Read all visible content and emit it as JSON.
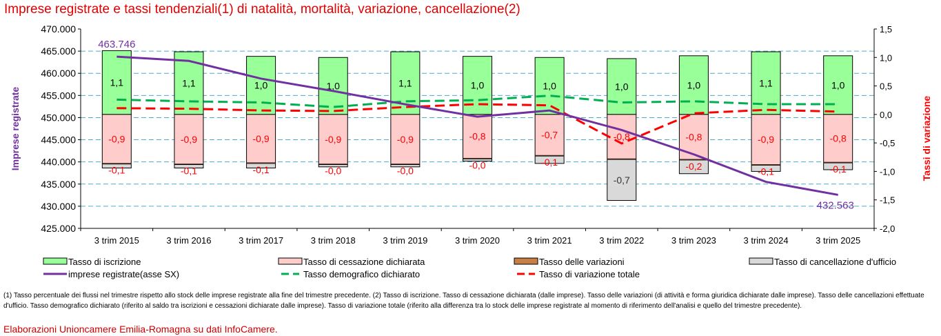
{
  "title": "Imprese registrate e tassi tendenziali(1) di natalità, mortalità, variazione, cancellazione(2)",
  "colors": {
    "iscrizione": "#99ff99",
    "cessazione": "#ffcccc",
    "variazioni": "#c87f46",
    "cancellazione": "#d9d9d9",
    "imprese": "#7030a0",
    "demografico": "#00b050",
    "variazione_totale": "#ff0000",
    "grid": "#4bacc6",
    "title": "#e00000"
  },
  "chart_data": {
    "type": "bar",
    "title": "Imprese registrate e tassi tendenziali(1) di natalità, mortalità, variazione, cancellazione(2)",
    "categories": [
      "3 trim 2015",
      "3 trim 2016",
      "3 trim 2017",
      "3 trim 2018",
      "3 trim 2019",
      "3 trim 2020",
      "3 trim 2021",
      "3 trim 2022",
      "3 trim 2023",
      "3 trim 2024",
      "3 trim 2025"
    ],
    "ylabel_left": "Imprese registrate",
    "ylabel_right": "Tassi di variazione",
    "ylim_left": [
      425000,
      470000
    ],
    "ylim_right": [
      -2.0,
      1.5
    ],
    "yticks_left": [
      "470.000",
      "465.000",
      "460.000",
      "455.000",
      "450.000",
      "445.000",
      "440.000",
      "435.000",
      "430.000",
      "425.000"
    ],
    "yticks_right": [
      "1,5",
      "1,0",
      "0,5",
      "0,0",
      "-0,5",
      "-1,0",
      "-1,5",
      "-2,0"
    ],
    "series": [
      {
        "name": "Tasso di iscrizione",
        "kind": "stacked-bar",
        "axis": "right",
        "values": [
          1.12,
          1.1,
          1.02,
          1.0,
          1.1,
          1.02,
          1.0,
          0.98,
          1.03,
          1.1,
          1.03
        ],
        "labels": [
          "1,1",
          "1,1",
          "1,0",
          "1,0",
          "1,1",
          "1,0",
          "1,0",
          "1,0",
          "1,0",
          "1,1",
          "1,0"
        ]
      },
      {
        "name": "Tasso di cessazione dichiarata",
        "kind": "stacked-bar",
        "axis": "right",
        "values": [
          -0.86,
          -0.87,
          -0.85,
          -0.87,
          -0.87,
          -0.77,
          -0.72,
          -0.78,
          -0.79,
          -0.88,
          -0.84
        ],
        "labels": [
          "-0,9",
          "-0,9",
          "-0,9",
          "-0,9",
          "-0,9",
          "-0,8",
          "-0,7",
          "-0,8",
          "-0,8",
          "-0,9",
          "-0,8"
        ]
      },
      {
        "name": "Tasso delle variazioni",
        "kind": "stacked-bar",
        "axis": "right",
        "values": [
          -0.01,
          -0.01,
          -0.01,
          -0.01,
          -0.01,
          -0.01,
          -0.01,
          -0.01,
          -0.01,
          -0.01,
          -0.01
        ],
        "labels": [
          "",
          "",
          "",
          "",
          "",
          "",
          "",
          "",
          "",
          "",
          ""
        ]
      },
      {
        "name": "Tasso di cancellazione d'ufficio",
        "kind": "stacked-bar",
        "axis": "right",
        "values": [
          -0.07,
          -0.06,
          -0.08,
          -0.04,
          -0.04,
          -0.04,
          -0.13,
          -0.72,
          -0.24,
          -0.11,
          -0.12
        ],
        "labels": [
          "-0,1",
          "-0,1",
          "-0,1",
          "-0,0",
          "-0,0",
          "-0,0",
          "-0,1",
          "-0,7",
          "-0,2",
          "-0,1",
          "-0,1"
        ]
      },
      {
        "name": "imprese registrate(asse SX)",
        "kind": "line",
        "axis": "left",
        "values": [
          463746,
          462800,
          458800,
          456000,
          453000,
          450200,
          451600,
          447200,
          441700,
          435500,
          432563
        ],
        "point_labels": {
          "first": "463.746",
          "last": "432.563"
        }
      },
      {
        "name": "Tasso demografico dichiarato",
        "kind": "dashed-line",
        "axis": "right",
        "values": [
          0.26,
          0.23,
          0.21,
          0.13,
          0.23,
          0.25,
          0.33,
          0.21,
          0.23,
          0.18,
          0.18
        ]
      },
      {
        "name": "Tasso di variazione totale",
        "kind": "dashed-line",
        "axis": "right",
        "values": [
          0.11,
          0.1,
          0.07,
          0.06,
          0.13,
          0.18,
          0.16,
          -0.51,
          0.02,
          0.08,
          0.05
        ]
      }
    ],
    "legend": {
      "position": "bottom",
      "entries": [
        {
          "label": "Tasso di iscrizione",
          "symbol": "box",
          "color": "#99ff99"
        },
        {
          "label": "Tasso di cessazione dichiarata",
          "symbol": "box",
          "color": "#ffcccc"
        },
        {
          "label": "Tasso delle variazioni",
          "symbol": "box",
          "color": "#c87f46"
        },
        {
          "label": "Tasso di cancellazione d'ufficio",
          "symbol": "box",
          "color": "#d9d9d9"
        },
        {
          "label": "imprese registrate(asse SX)",
          "symbol": "line",
          "color": "#7030a0"
        },
        {
          "label": "Tasso demografico dichiarato",
          "symbol": "dash",
          "color": "#00b050"
        },
        {
          "label": "Tasso di variazione totale",
          "symbol": "dash",
          "color": "#ff0000"
        }
      ]
    },
    "grid": true
  },
  "footnote": "(1) Tasso percentuale dei flussi nel trimestre rispetto allo stock delle imprese registrate alla fine del trimestre precedente. (2) Tasso di iscrizione. Tasso di cessazione dichiarata (dalle imprese). Tasso delle variazioni (di attività e forma giuridica dichiarate dalle imprese). Tasso delle cancellazioni effettuate d'ufficio. Tasso demografico dichiarato (riferito al saldo tra iscrizioni e cessazioni dichiarate dalle imprese). Tasso di variazione totale (riferito alla differenza tra lo stock delle imprese registrate al momento di riferimento dell'analisi e quello del trimestre precedente).",
  "source": "Elaborazioni Unioncamere Emilia-Romagna su dati InfoCamere."
}
